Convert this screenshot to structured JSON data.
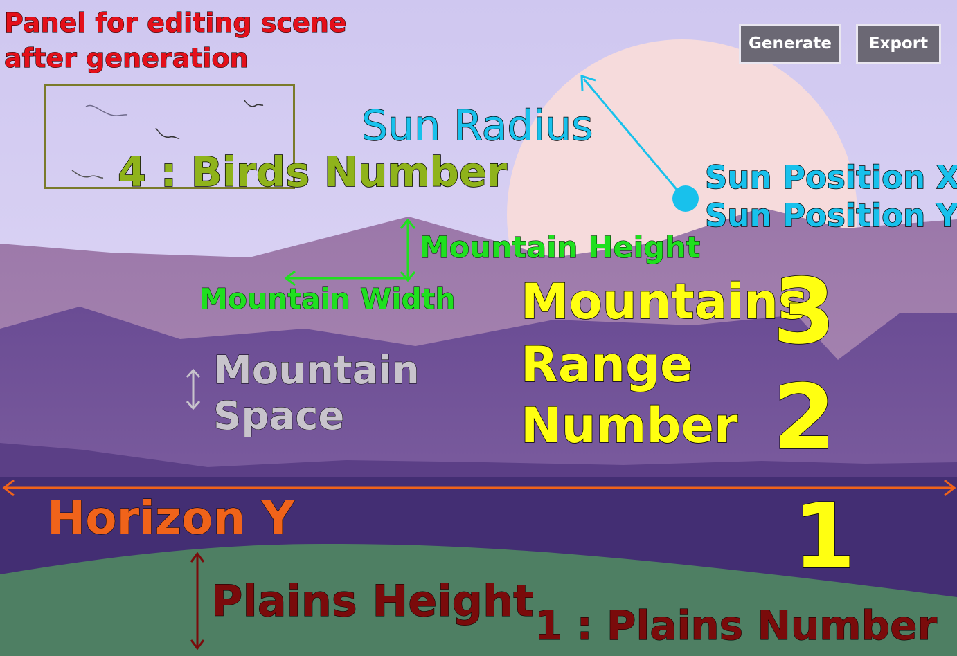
{
  "buttons": {
    "generate": "Generate",
    "export": "Export"
  },
  "labels": {
    "panel_line1": "Panel for editing scene",
    "panel_line2": "after generation",
    "sun_radius": "Sun Radius",
    "sun_position_x": "Sun Position X",
    "sun_position_y": "Sun Position Y",
    "birds_number": "4 : Birds Number",
    "mountain_height": "Mountain Height",
    "mountain_width": "Mountain Width",
    "mountain_space_1": "Mountain",
    "mountain_space_2": "Space",
    "mountains_range_1": "Mountains",
    "mountains_range_2": "Range",
    "mountains_range_3": "Number",
    "range_3": "3",
    "range_2": "2",
    "range_1": "1",
    "horizon_y": "Horizon Y",
    "plains_height": "Plains Height",
    "plains_number": "1 : Plains Number"
  },
  "colors": {
    "sky_top": "#cfc7f0",
    "sky_bottom": "#e4ddf7",
    "sun": "#f6dbdc",
    "mountain_far": "#9f7bab",
    "mountain_mid": "#71539a",
    "mountain_near": "#5c3f88",
    "horizon_band": "#432e73",
    "plains": "#4e7f63",
    "panel_text": "#e4101a",
    "sun_annotation": "#18c1ec",
    "birds_text": "#8fb31b",
    "mountain_dims": "#1fe01f",
    "mountain_space": "#c8c4cc",
    "range_text": "#ffff11",
    "horizon_text": "#f0631a",
    "plains_text": "#7a0b0b",
    "button_bg": "#6b6874"
  },
  "icons": [
    "double-arrow-icon",
    "bird-icon"
  ]
}
